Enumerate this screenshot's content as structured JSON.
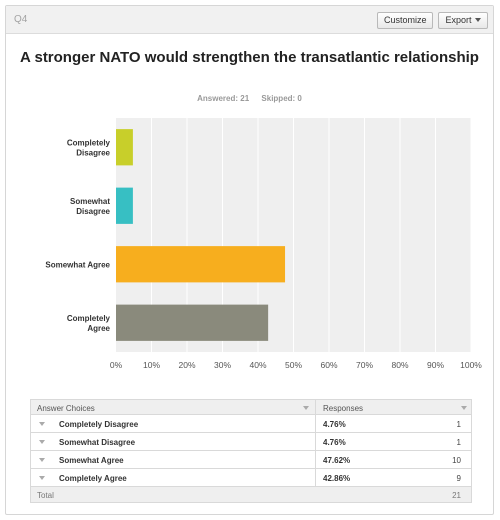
{
  "header": {
    "question_label": "Q4",
    "customize_label": "Customize",
    "export_label": "Export"
  },
  "chart_data": {
    "type": "bar",
    "orientation": "horizontal",
    "title": "A stronger NATO would strengthen the transatlantic relationship",
    "categories": [
      "Completely Disagree",
      "Somewhat Disagree",
      "Somewhat Agree",
      "Completely Agree"
    ],
    "category_labels": [
      [
        "Completely",
        "Disagree"
      ],
      [
        "Somewhat",
        "Disagree"
      ],
      [
        "Somewhat Agree"
      ],
      [
        "Completely",
        "Agree"
      ]
    ],
    "values": [
      4.76,
      4.76,
      47.62,
      42.86
    ],
    "colors": [
      "#c8cf2a",
      "#37bfc3",
      "#f7ae1e",
      "#8a8a7c"
    ],
    "xlim": [
      0,
      100
    ],
    "xticks": [
      "0%",
      "10%",
      "20%",
      "30%",
      "40%",
      "50%",
      "60%",
      "70%",
      "80%",
      "90%",
      "100%"
    ],
    "plot_background": "#efefef",
    "grid": true
  },
  "stats": {
    "answered": "Answered: 21",
    "skipped": "Skipped: 0"
  },
  "table": {
    "col_answer": "Answer Choices",
    "col_responses": "Responses",
    "rows": [
      {
        "label": "Completely Disagree",
        "pct": "4.76%",
        "count": "1"
      },
      {
        "label": "Somewhat Disagree",
        "pct": "4.76%",
        "count": "1"
      },
      {
        "label": "Somewhat Agree",
        "pct": "47.62%",
        "count": "10"
      },
      {
        "label": "Completely Agree",
        "pct": "42.86%",
        "count": "9"
      }
    ],
    "total_label": "Total",
    "total_count": "21"
  }
}
